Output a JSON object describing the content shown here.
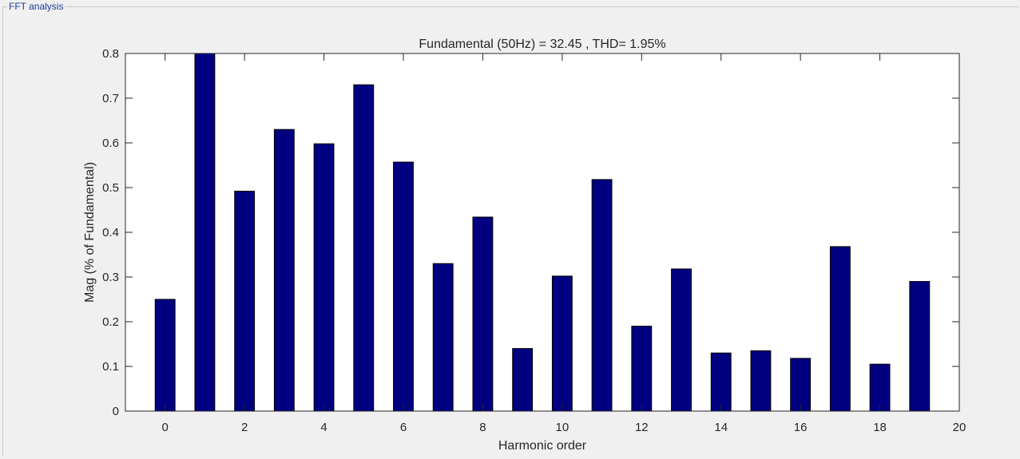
{
  "panel": {
    "title": "FFT analysis"
  },
  "chart_data": {
    "type": "bar",
    "title": "Fundamental (50Hz) = 32.45 , THD= 1.95%",
    "xlabel": "Harmonic order",
    "ylabel": "Mag (% of Fundamental)",
    "xlim": [
      -1,
      20
    ],
    "ylim": [
      0,
      0.8
    ],
    "x_ticks": [
      0,
      2,
      4,
      6,
      8,
      10,
      12,
      14,
      16,
      18,
      20
    ],
    "x_tick_labels": [
      "0",
      "2",
      "4",
      "6",
      "8",
      "10",
      "12",
      "14",
      "16",
      "18",
      "20"
    ],
    "y_ticks": [
      0,
      0.1,
      0.2,
      0.3,
      0.4,
      0.5,
      0.6,
      0.7,
      0.8
    ],
    "y_tick_labels": [
      "0",
      "0.1",
      "0.2",
      "0.3",
      "0.4",
      "0.5",
      "0.6",
      "0.7",
      "0.8"
    ],
    "categories": [
      0,
      1,
      2,
      3,
      4,
      5,
      6,
      7,
      8,
      9,
      10,
      11,
      12,
      13,
      14,
      15,
      16,
      17,
      18,
      19
    ],
    "values": [
      0.25,
      0.8,
      0.492,
      0.63,
      0.598,
      0.73,
      0.557,
      0.33,
      0.434,
      0.14,
      0.302,
      0.518,
      0.19,
      0.318,
      0.13,
      0.135,
      0.118,
      0.368,
      0.105,
      0.29
    ],
    "bar_color": "#000080",
    "grid": false
  }
}
